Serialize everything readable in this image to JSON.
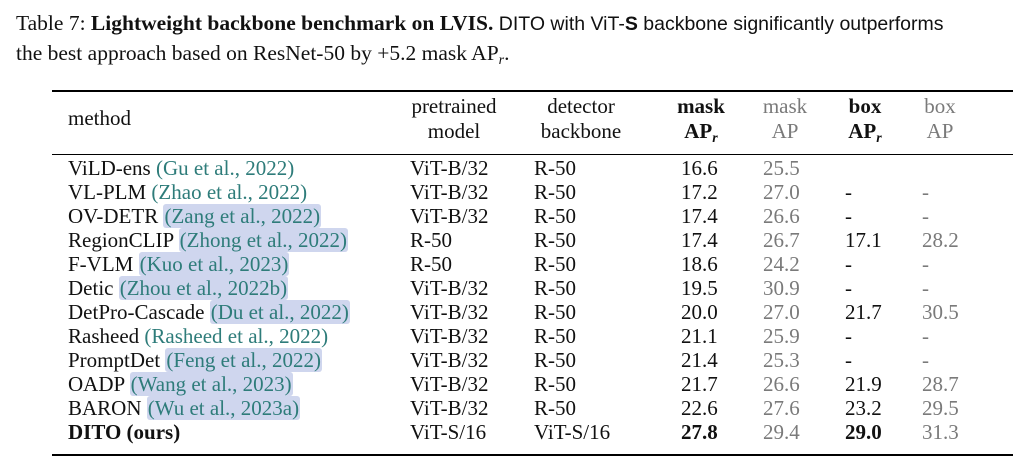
{
  "caption": {
    "label": "Table 7:",
    "title": "Lightweight backbone benchmark on LVIS.",
    "text_pre": " DITO with ViT-",
    "text_s": "S",
    "text_mid": " backbone significantly outperforms",
    "line2": "the best approach based on ResNet-50 by +5.2 mask AP",
    "line2_sub": "r",
    "line2_end": "."
  },
  "headers": {
    "method": "method",
    "pretrained_1": "pretrained",
    "pretrained_2": "model",
    "detector_1": "detector",
    "detector_2": "backbone",
    "mask_1": "mask",
    "mask_2": "AP",
    "mask_sub": "r",
    "maskap_1": "mask",
    "maskap_2": "AP",
    "box_1": "box",
    "box_2": "AP",
    "box_sub": "r",
    "boxap_1": "box",
    "boxap_2": "AP"
  },
  "rows": [
    {
      "method": "ViLD-ens",
      "cite": "(Gu et al., 2022)",
      "hl": false,
      "pretrained": "ViT-B/32",
      "detector": "R-50",
      "mask_apr": "16.6",
      "mask_ap": "25.5",
      "box_apr": "",
      "box_ap": ""
    },
    {
      "method": "VL-PLM",
      "cite": "(Zhao et al., 2022)",
      "hl": false,
      "pretrained": "ViT-B/32",
      "detector": "R-50",
      "mask_apr": "17.2",
      "mask_ap": "27.0",
      "box_apr": "-",
      "box_ap": "-"
    },
    {
      "method": "OV-DETR",
      "cite": "(Zang et al., 2022)",
      "hl": true,
      "pretrained": "ViT-B/32",
      "detector": "R-50",
      "mask_apr": "17.4",
      "mask_ap": "26.6",
      "box_apr": "-",
      "box_ap": "-"
    },
    {
      "method": "RegionCLIP",
      "cite": "(Zhong et al., 2022)",
      "hl": true,
      "pretrained": "R-50",
      "detector": "R-50",
      "mask_apr": "17.4",
      "mask_ap": "26.7",
      "box_apr": "17.1",
      "box_ap": "28.2"
    },
    {
      "method": "F-VLM",
      "cite": "(Kuo et al., 2023)",
      "hl": true,
      "pretrained": "R-50",
      "detector": "R-50",
      "mask_apr": "18.6",
      "mask_ap": "24.2",
      "box_apr": "-",
      "box_ap": "-"
    },
    {
      "method": "Detic",
      "cite": "(Zhou et al., 2022b)",
      "hl": true,
      "pretrained": "ViT-B/32",
      "detector": "R-50",
      "mask_apr": "19.5",
      "mask_ap": "30.9",
      "box_apr": "-",
      "box_ap": "-"
    },
    {
      "method": "DetPro-Cascade",
      "cite": "(Du et al., 2022)",
      "hl": true,
      "pretrained": "ViT-B/32",
      "detector": "R-50",
      "mask_apr": "20.0",
      "mask_ap": "27.0",
      "box_apr": "21.7",
      "box_ap": "30.5"
    },
    {
      "method": "Rasheed",
      "cite": "(Rasheed et al., 2022)",
      "hl": false,
      "pretrained": "ViT-B/32",
      "detector": "R-50",
      "mask_apr": "21.1",
      "mask_ap": "25.9",
      "box_apr": "-",
      "box_ap": "-"
    },
    {
      "method": "PromptDet",
      "cite": "(Feng et al., 2022)",
      "hl": true,
      "pretrained": "ViT-B/32",
      "detector": "R-50",
      "mask_apr": "21.4",
      "mask_ap": "25.3",
      "box_apr": "-",
      "box_ap": "-"
    },
    {
      "method": "OADP",
      "cite": "(Wang et al., 2023)",
      "hl": true,
      "pretrained": "ViT-B/32",
      "detector": "R-50",
      "mask_apr": "21.7",
      "mask_ap": "26.6",
      "box_apr": "21.9",
      "box_ap": "28.7"
    },
    {
      "method": "BARON",
      "cite": "(Wu et al., 2023a)",
      "hl": true,
      "pretrained": "ViT-B/32",
      "detector": "R-50",
      "mask_apr": "22.6",
      "mask_ap": "27.6",
      "box_apr": "23.2",
      "box_ap": "29.5"
    },
    {
      "method": "DITO (ours)",
      "cite": "",
      "hl": false,
      "bold": true,
      "pretrained": "ViT-S/16",
      "detector": "ViT-S/16",
      "mask_apr": "27.8",
      "mask_ap": "29.4",
      "box_apr": "29.0",
      "box_ap": "31.3"
    }
  ]
}
